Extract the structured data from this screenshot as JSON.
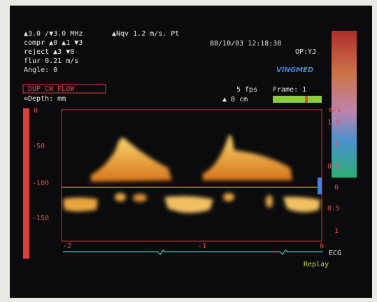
{
  "settings": {
    "lines": [
      "▲3.0 /▼3.0 MHz",
      "compr ▲0 ▲1 ▼3",
      "reject ▲3 ▼0",
      "flur 0.21 m/s",
      "Angle:  0"
    ]
  },
  "header": {
    "nqv": "▲Nqv 1.2 m/s.  Pt",
    "datetime": "88/10/03  12:18:38",
    "operator": "OP:YJ",
    "brand": "VINGMED"
  },
  "mode": {
    "label": "DUP CW FLOW",
    "depth": "=Depth: mm",
    "fps": "5 fps",
    "depth_cm": "▲  8 cm",
    "frame": "Frame:  1"
  },
  "left_scale": [
    "0",
    "-50",
    "-100",
    "-150"
  ],
  "right_scale": {
    "unit": "m/s",
    "labels": [
      "1.5",
      "1",
      "0.5",
      "0",
      "0.5",
      "1"
    ]
  },
  "time_scale": [
    "-2",
    "-1",
    "0"
  ],
  "ecg_label": "ECG",
  "replay_label": "Replay"
}
